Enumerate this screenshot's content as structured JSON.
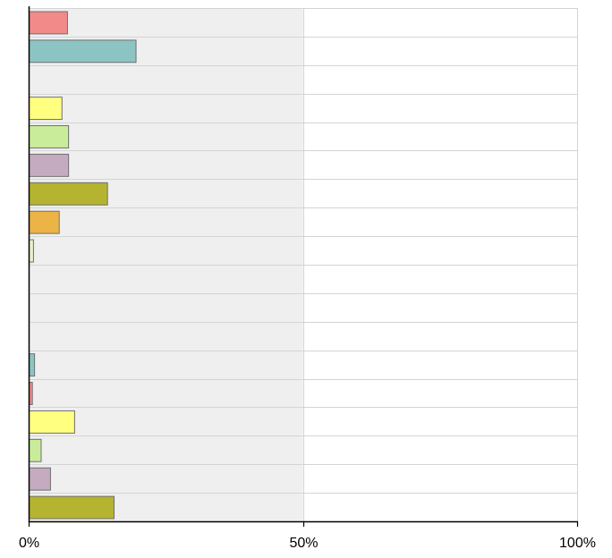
{
  "chart_data": {
    "type": "bar",
    "orientation": "horizontal",
    "title": "",
    "xlabel": "",
    "ylabel": "",
    "xlim": [
      0,
      100
    ],
    "x_ticks": [
      {
        "value": 0,
        "label": "0%"
      },
      {
        "value": 50,
        "label": "50%"
      },
      {
        "value": 100,
        "label": "100%"
      }
    ],
    "grid": true,
    "shaded_range": [
      0,
      50
    ],
    "shade_color": "#efefef",
    "rows": [
      {
        "value": 7,
        "color": "#f28a8a"
      },
      {
        "value": 19.5,
        "color": "#8cc4c4"
      },
      {
        "value": null,
        "color": null
      },
      {
        "value": 6,
        "color": "#ffff80"
      },
      {
        "value": 7.2,
        "color": "#c8ec9a"
      },
      {
        "value": 7.2,
        "color": "#c4abc0"
      },
      {
        "value": 14.3,
        "color": "#b4b430"
      },
      {
        "value": 5.5,
        "color": "#ecb446"
      },
      {
        "value": 0.8,
        "color": "#e6f2c4"
      },
      {
        "value": null,
        "color": null
      },
      {
        "value": null,
        "color": null
      },
      {
        "value": null,
        "color": null
      },
      {
        "value": 1,
        "color": "#8cc4c4"
      },
      {
        "value": 0.6,
        "color": "#f28a8a"
      },
      {
        "value": 8.3,
        "color": "#ffff80"
      },
      {
        "value": 2.2,
        "color": "#c8ec9a"
      },
      {
        "value": 3.9,
        "color": "#c4abc0"
      },
      {
        "value": 15.5,
        "color": "#b4b430"
      }
    ]
  }
}
